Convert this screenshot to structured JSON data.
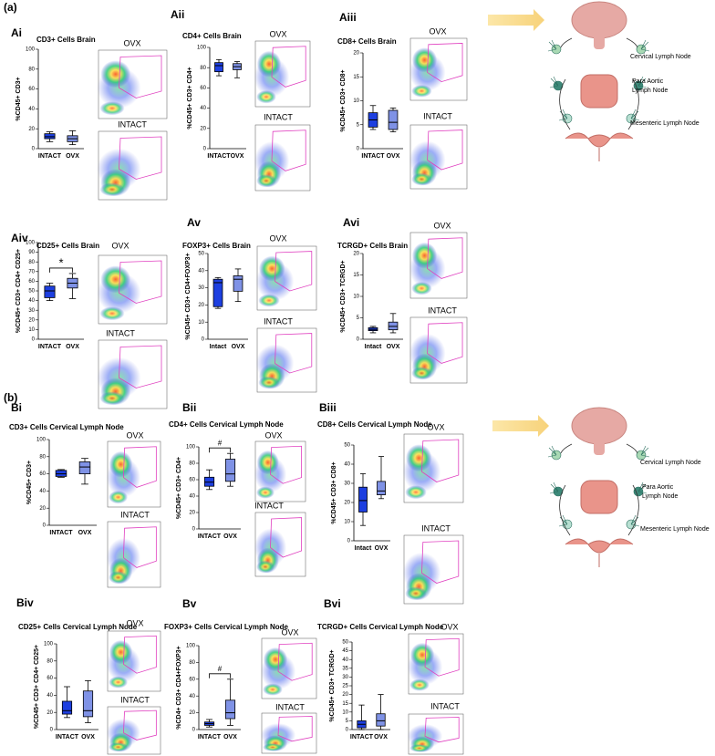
{
  "figure_labels": [
    "(a)",
    "(b)"
  ],
  "chart_data": [
    {
      "type": "box",
      "panel": "Ai",
      "title": "CD3+ Cells Brain",
      "y_label": "%CD45+ CD3+",
      "categories": [
        "INTACT",
        "OVX"
      ],
      "colors": [
        "#1d3fe0",
        "#7f92e6"
      ],
      "boxes": [
        [
          7,
          10,
          12,
          15,
          17
        ],
        [
          4,
          7,
          10,
          13,
          18
        ]
      ],
      "ylim": [
        0,
        100
      ],
      "yticks": [
        0,
        20,
        40,
        60,
        80,
        100
      ],
      "gates": [
        "OVX",
        "INTACT"
      ]
    },
    {
      "type": "box",
      "panel": "Aii",
      "title": "CD4+ Cells Brain",
      "y_label": "%CD45+ CD3+ CD4+",
      "categories": [
        "INTACT",
        "OVX"
      ],
      "colors": [
        "#1d3fe0",
        "#7f92e6"
      ],
      "boxes": [
        [
          72,
          76,
          82,
          85,
          88
        ],
        [
          70,
          78,
          81,
          84,
          86
        ]
      ],
      "ylim": [
        0,
        100
      ],
      "yticks": [
        0,
        20,
        40,
        60,
        80,
        100
      ],
      "gates": [
        "OVX",
        "INTACT"
      ]
    },
    {
      "type": "box",
      "panel": "Aiii",
      "title": "CD8+ Cells Brain",
      "y_label": "%CD45+ CD3+ CD8+",
      "categories": [
        "INTACT",
        "OVX"
      ],
      "colors": [
        "#1d3fe0",
        "#7f92e6"
      ],
      "boxes": [
        [
          4,
          4.5,
          6,
          7.5,
          9
        ],
        [
          3.5,
          4,
          5.5,
          8,
          8.5
        ]
      ],
      "ylim": [
        0,
        20
      ],
      "yticks": [
        0,
        5,
        10,
        15,
        20
      ],
      "gates": [
        "OVX",
        "INTACT"
      ]
    },
    {
      "type": "box",
      "panel": "Aiv",
      "title": "CD25+ Cells Brain",
      "y_label": "%CD45+ CD3+ CD4+ CD25+",
      "categories": [
        "INTACT",
        "OVX"
      ],
      "colors": [
        "#1d3fe0",
        "#7f92e6"
      ],
      "boxes": [
        [
          40,
          43,
          50,
          55,
          58
        ],
        [
          42,
          53,
          58,
          63,
          68
        ]
      ],
      "ylim": [
        0,
        100
      ],
      "yticks": [
        0,
        10,
        20,
        30,
        40,
        50,
        60,
        70,
        80,
        90,
        100
      ],
      "significance": "*",
      "gates": [
        "OVX",
        "INTACT"
      ]
    },
    {
      "type": "box",
      "panel": "Av",
      "title": "FOXP3+ Cells Brain",
      "y_label": "%CD45+ CD3+ CD4+FOXP3+",
      "categories": [
        "Intact",
        "OVX"
      ],
      "colors": [
        "#1d3fe0",
        "#7f92e6"
      ],
      "boxes": [
        [
          18,
          19,
          33,
          35,
          36
        ],
        [
          22,
          28,
          35,
          37,
          41
        ]
      ],
      "ylim": [
        0,
        50
      ],
      "yticks": [
        0,
        10,
        20,
        30,
        40,
        50
      ],
      "gates": [
        "OVX",
        "INTACT"
      ]
    },
    {
      "type": "box",
      "panel": "Avi",
      "title": "TCRGD+ Cells Brain",
      "y_label": "%CD45+ CD3+ TCRGD+",
      "categories": [
        "Intact",
        "OVX"
      ],
      "colors": [
        "#1d3fe0",
        "#7f92e6"
      ],
      "boxes": [
        [
          1.5,
          2,
          2.3,
          2.7,
          3
        ],
        [
          1.5,
          2.2,
          3,
          4,
          6
        ]
      ],
      "ylim": [
        0,
        20
      ],
      "yticks": [
        0,
        5,
        10,
        15,
        20
      ],
      "gates": [
        "OVX",
        "INTACT"
      ]
    },
    {
      "type": "box",
      "panel": "Bi",
      "title": "CD3+ Cells Cervical Lymph Node",
      "y_label": "%CD45+ CD3+",
      "categories": [
        "INTACT",
        "OVX"
      ],
      "colors": [
        "#1d3fe0",
        "#7f92e6"
      ],
      "boxes": [
        [
          56,
          57,
          60,
          64,
          65
        ],
        [
          48,
          60,
          68,
          74,
          78
        ]
      ],
      "ylim": [
        0,
        100
      ],
      "yticks": [
        0,
        20,
        40,
        60,
        80,
        100
      ],
      "gates": [
        "OVX",
        "INTACT"
      ]
    },
    {
      "type": "box",
      "panel": "Bii",
      "title": "CD4+ Cells Cervical Lymph Node",
      "y_label": "%CD45+ CD3+ CD4+",
      "categories": [
        "INTACT",
        "OVX"
      ],
      "colors": [
        "#1d3fe0",
        "#7f92e6"
      ],
      "boxes": [
        [
          48,
          52,
          57,
          63,
          72
        ],
        [
          52,
          58,
          67,
          85,
          92
        ]
      ],
      "ylim": [
        0,
        100
      ],
      "yticks": [
        0,
        20,
        40,
        60,
        80,
        100
      ],
      "significance": "#",
      "gates": [
        "OVX",
        "INTACT"
      ]
    },
    {
      "type": "box",
      "panel": "Biii",
      "title": "CD8+ Cells Cervical Lymph Node",
      "y_label": "%CD45+ CD3+ CD8+",
      "categories": [
        "Intact",
        "OVX"
      ],
      "colors": [
        "#1d3fe0",
        "#7f92e6"
      ],
      "boxes": [
        [
          8,
          15,
          21,
          28,
          35
        ],
        [
          22,
          24,
          26,
          31,
          44
        ]
      ],
      "ylim": [
        0,
        50
      ],
      "yticks": [
        0,
        10,
        20,
        30,
        40,
        50
      ],
      "gates": [
        "OVX",
        "INTACT"
      ]
    },
    {
      "type": "box",
      "panel": "Biv",
      "title": "CD25+ Cells Cervical Lymph Node",
      "y_label": "%CD45+ CD3+ CD4+ CD25+",
      "categories": [
        "INTACT",
        "OVX"
      ],
      "colors": [
        "#1d3fe0",
        "#7f92e6"
      ],
      "boxes": [
        [
          14,
          18,
          22,
          33,
          50
        ],
        [
          8,
          15,
          22,
          45,
          57
        ]
      ],
      "ylim": [
        0,
        100
      ],
      "yticks": [
        0,
        20,
        40,
        60,
        80,
        100
      ],
      "gates": [
        "OVX",
        "INTACT"
      ]
    },
    {
      "type": "box",
      "panel": "Bv",
      "title": "FOXP3+ Cells Cervical Lymph Node",
      "y_label": "%CD4+ CD3+ CD4+FOXP3+",
      "categories": [
        "INTACT",
        "OVX"
      ],
      "colors": [
        "#1d3fe0",
        "#7f92e6"
      ],
      "boxes": [
        [
          3,
          5,
          7,
          9,
          12
        ],
        [
          5,
          13,
          20,
          35,
          60
        ]
      ],
      "ylim": [
        0,
        100
      ],
      "yticks": [
        0,
        20,
        40,
        60,
        80,
        100
      ],
      "significance": "#",
      "gates": [
        "OVX",
        "INTACT"
      ]
    },
    {
      "type": "box",
      "panel": "Bvi",
      "title": "TCRGD+ Cells Cervical Lymph Node",
      "y_label": "%CD45+ CD3+ TCRGD+",
      "categories": [
        "INTACT",
        "OVX"
      ],
      "colors": [
        "#1d3fe0",
        "#7f92e6"
      ],
      "boxes": [
        [
          0,
          1,
          3,
          5,
          14
        ],
        [
          0,
          2,
          5,
          9,
          20
        ]
      ],
      "ylim": [
        0,
        50
      ],
      "yticks": [
        0,
        5,
        10,
        15,
        20,
        25,
        30,
        35,
        40,
        45,
        50
      ],
      "gates": [
        "OVX",
        "INTACT"
      ]
    }
  ],
  "diagrams": [
    {
      "cervical": "Cervical Lymph Node",
      "para_aortic": [
        "Para Aortic",
        "Lymph Node"
      ],
      "mesenteric": "Mesenteric Lymph Node"
    },
    {
      "cervical": "Cervical Lymph Node",
      "para_aortic": [
        "Para Aortic",
        "Lymph Node"
      ],
      "mesenteric": "Mesenteric Lymph Node"
    }
  ]
}
